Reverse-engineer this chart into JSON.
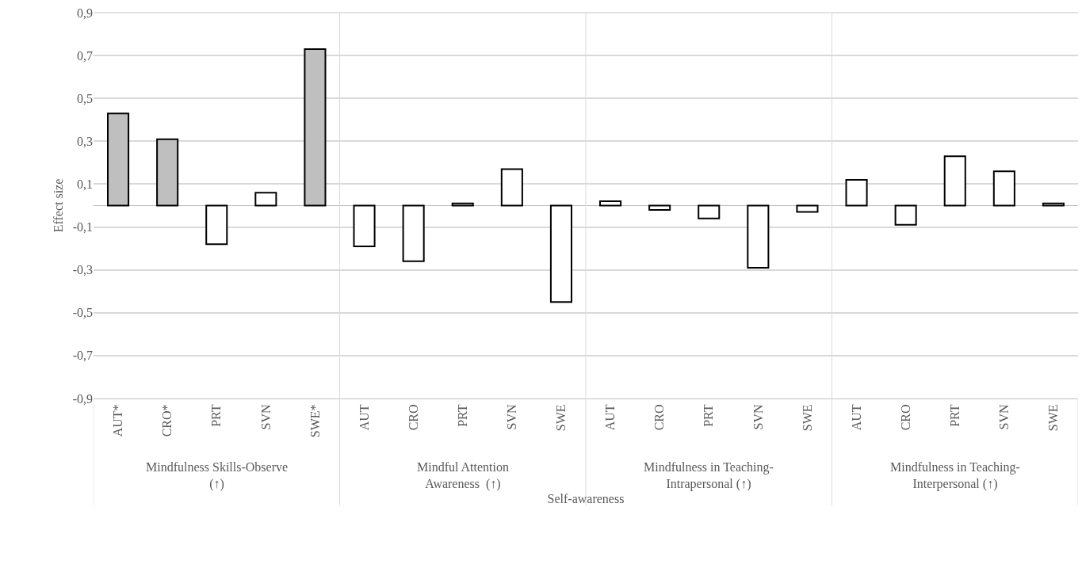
{
  "chart_data": {
    "type": "bar",
    "xlabel": "Self-awareness",
    "ylabel": "Effect size",
    "categories": [
      "AUT*",
      "CRO*",
      "PRT",
      "SVN",
      "SWE*",
      "AUT",
      "CRO",
      "PRT",
      "SVN",
      "SWE",
      "AUT",
      "CRO",
      "PRT",
      "SVN",
      "SWE",
      "AUT",
      "CRO",
      "PRT",
      "SVN",
      "SWE"
    ],
    "values": [
      0.43,
      0.31,
      -0.18,
      0.06,
      0.73,
      -0.19,
      -0.26,
      0.01,
      0.17,
      -0.45,
      0.02,
      -0.02,
      -0.06,
      -0.29,
      -0.03,
      0.12,
      -0.09,
      0.23,
      0.16,
      0.01
    ],
    "colors": [
      "#bfbfbf",
      "#bfbfbf",
      "#ffffff",
      "#ffffff",
      "#bfbfbf",
      "#ffffff",
      "#ffffff",
      "#ffffff",
      "#ffffff",
      "#ffffff",
      "#ffffff",
      "#ffffff",
      "#ffffff",
      "#ffffff",
      "#ffffff",
      "#ffffff",
      "#ffffff",
      "#ffffff",
      "#ffffff",
      "#ffffff"
    ],
    "ylim": [
      -0.9,
      0.9
    ],
    "yticks": [
      {
        "value": -0.9,
        "label": "-0,9"
      },
      {
        "value": -0.7,
        "label": "-0,7"
      },
      {
        "value": -0.5,
        "label": "-0,5"
      },
      {
        "value": -0.3,
        "label": "-0,3"
      },
      {
        "value": -0.1,
        "label": "-0,1"
      },
      {
        "value": 0.1,
        "label": "0,1"
      },
      {
        "value": 0.3,
        "label": "0,3"
      },
      {
        "value": 0.5,
        "label": "0,5"
      },
      {
        "value": 0.7,
        "label": "0,7"
      },
      {
        "value": 0.9,
        "label": "0,9"
      }
    ],
    "grid": "y",
    "annotations": [
      "Mindfulness Skills-Observe\n(↑)",
      "Mindful Attention\nAwareness  (↑)",
      "Mindfulness in Teaching-\nIntrapersonal (↑)",
      "Mindfulness in Teaching-\nInterpersonal (↑)"
    ]
  }
}
